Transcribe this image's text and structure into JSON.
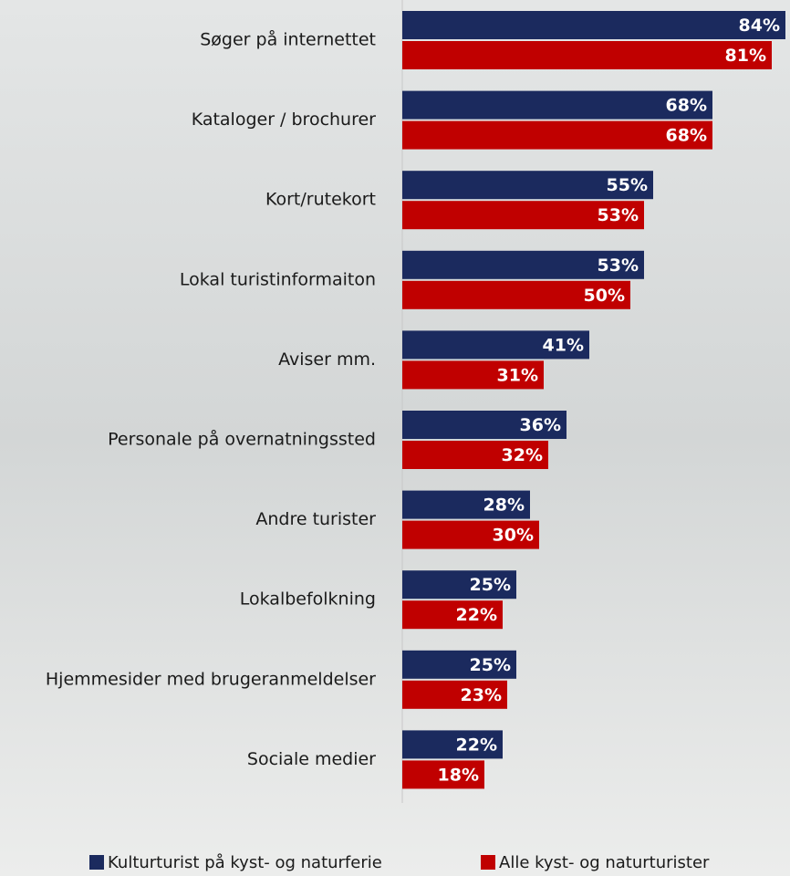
{
  "chart_data": {
    "type": "bar",
    "orientation": "horizontal",
    "categories": [
      "Søger på internettet",
      "Kataloger / brochurer",
      "Kort/rutekort",
      "Lokal turistinformaiton",
      "Aviser mm.",
      "Personale på overnatningssted",
      "Andre turister",
      "Lokalbefolkning",
      "Hjemmesider med brugeranmeldelser",
      "Sociale medier"
    ],
    "series": [
      {
        "name": "Kulturturist på kyst- og naturferie",
        "color": "#1b2a5e",
        "values": [
          84,
          68,
          55,
          53,
          41,
          36,
          28,
          25,
          25,
          22
        ],
        "value_labels": [
          "84%",
          "68%",
          "55%",
          "53%",
          "41%",
          "36%",
          "28%",
          "25%",
          "25%",
          "22%"
        ]
      },
      {
        "name": "Alle kyst- og naturturister",
        "color": "#c00000",
        "values": [
          81,
          68,
          53,
          50,
          31,
          32,
          30,
          22,
          23,
          18
        ],
        "value_labels": [
          "81%",
          "68%",
          "53%",
          "50%",
          "31%",
          "32%",
          "30%",
          "22%",
          "23%",
          "18%"
        ]
      }
    ],
    "legend": "bottom"
  }
}
